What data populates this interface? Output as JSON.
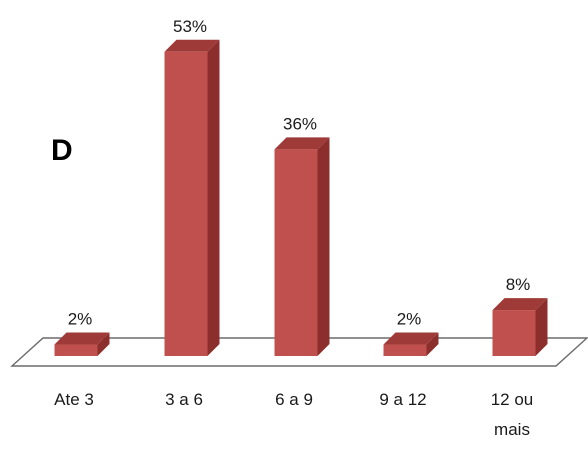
{
  "chart_data": {
    "type": "bar",
    "panel_label": "D",
    "categories": [
      "Ate 3",
      "3 a 6",
      "6 a 9",
      "9 a 12",
      "12 ou mais"
    ],
    "category_lines": [
      [
        "Ate 3"
      ],
      [
        "3 a 6"
      ],
      [
        "6 a 9"
      ],
      [
        "9 a 12"
      ],
      [
        "12 ou",
        "mais"
      ]
    ],
    "values": [
      2,
      53,
      36,
      2,
      8
    ],
    "data_labels": [
      "2%",
      "53%",
      "36%",
      "2%",
      "8%"
    ],
    "unit": "%",
    "style": "3d-column",
    "legend": "none",
    "grid": false,
    "colors": {
      "front": "#c0504d",
      "side": "#8c2f2c",
      "top": "#9e3a37",
      "floor_stroke": "#6b6b6b"
    }
  }
}
